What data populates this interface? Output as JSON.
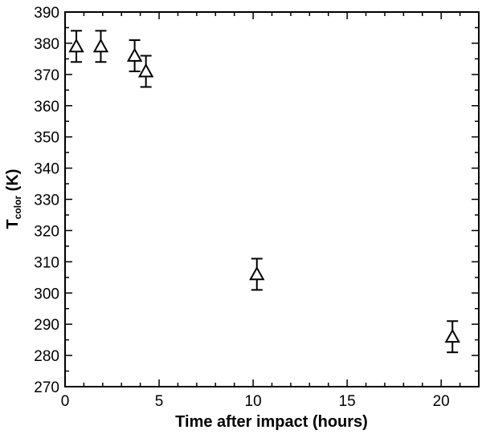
{
  "chart_data": {
    "type": "scatter",
    "xlabel": "Time after impact (hours)",
    "ylabel": {
      "main": "T",
      "subscript": "color",
      "unit": " (K)"
    },
    "xlim": [
      0,
      22
    ],
    "ylim": [
      270,
      390
    ],
    "xticks": [
      0,
      5,
      10,
      15,
      20
    ],
    "yticks": [
      270,
      280,
      290,
      300,
      310,
      320,
      330,
      340,
      350,
      360,
      370,
      380,
      390
    ],
    "grid": false,
    "marker": "open-triangle",
    "points": [
      {
        "x": 0.6,
        "y": 379,
        "err": 5
      },
      {
        "x": 1.9,
        "y": 379,
        "err": 5
      },
      {
        "x": 3.7,
        "y": 376,
        "err": 5
      },
      {
        "x": 4.3,
        "y": 371,
        "err": 5
      },
      {
        "x": 10.2,
        "y": 306,
        "err": 5
      },
      {
        "x": 20.6,
        "y": 286,
        "err": 5
      }
    ]
  }
}
